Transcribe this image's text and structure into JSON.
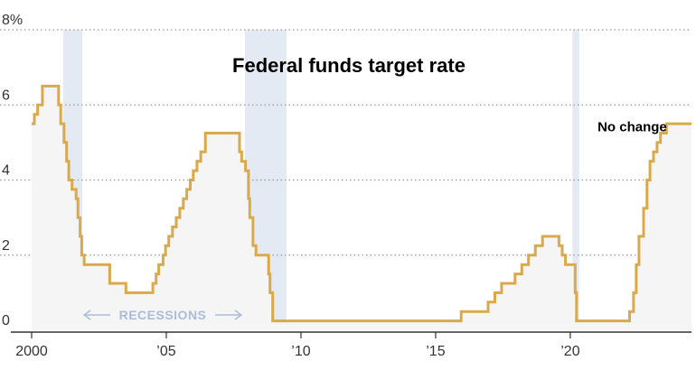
{
  "chart_data": {
    "type": "area",
    "title": "Federal funds target rate",
    "xlabel": "",
    "ylabel": "",
    "xlim": [
      2000,
      2024.5
    ],
    "ylim": [
      0,
      8
    ],
    "y_ticks": [
      {
        "value": 0,
        "label": "0"
      },
      {
        "value": 2,
        "label": "2"
      },
      {
        "value": 4,
        "label": "4"
      },
      {
        "value": 6,
        "label": "6"
      },
      {
        "value": 8,
        "label": "8%"
      }
    ],
    "x_ticks": [
      {
        "value": 2000,
        "label": "2000"
      },
      {
        "value": 2005,
        "label": "’05"
      },
      {
        "value": 2010,
        "label": "’10"
      },
      {
        "value": 2015,
        "label": "’15"
      },
      {
        "value": 2020,
        "label": "’20"
      }
    ],
    "grid": "horizontal dotted",
    "recessions": [
      {
        "start": 2001.17,
        "end": 2001.88
      },
      {
        "start": 2007.92,
        "end": 2009.46
      },
      {
        "start": 2020.08,
        "end": 2020.33
      }
    ],
    "recessions_label": "RECESSIONS",
    "annotation": {
      "text": "No change",
      "x": 2022.3,
      "y": 5.3
    },
    "colors": {
      "line": "#d9a94b",
      "area": "#f5f5f5",
      "recession": "#e3eaf3",
      "recession_text": "#a9bdd9",
      "grid": "#999999"
    },
    "series": [
      {
        "steps": [
          [
            2000.0,
            5.5
          ],
          [
            2000.1,
            5.75
          ],
          [
            2000.22,
            6.0
          ],
          [
            2000.4,
            6.5
          ],
          [
            2001.0,
            6.0
          ],
          [
            2001.08,
            5.5
          ],
          [
            2001.2,
            5.0
          ],
          [
            2001.3,
            4.5
          ],
          [
            2001.38,
            4.0
          ],
          [
            2001.5,
            3.75
          ],
          [
            2001.65,
            3.5
          ],
          [
            2001.72,
            3.0
          ],
          [
            2001.8,
            2.5
          ],
          [
            2001.86,
            2.0
          ],
          [
            2001.95,
            1.75
          ],
          [
            2002.9,
            1.25
          ],
          [
            2003.5,
            1.0
          ],
          [
            2004.5,
            1.25
          ],
          [
            2004.62,
            1.5
          ],
          [
            2004.72,
            1.75
          ],
          [
            2004.88,
            2.0
          ],
          [
            2004.97,
            2.25
          ],
          [
            2005.09,
            2.5
          ],
          [
            2005.23,
            2.75
          ],
          [
            2005.37,
            3.0
          ],
          [
            2005.5,
            3.25
          ],
          [
            2005.63,
            3.5
          ],
          [
            2005.76,
            3.75
          ],
          [
            2005.89,
            4.0
          ],
          [
            2006.0,
            4.25
          ],
          [
            2006.14,
            4.5
          ],
          [
            2006.28,
            4.75
          ],
          [
            2006.45,
            5.25
          ],
          [
            2007.72,
            4.75
          ],
          [
            2007.8,
            4.5
          ],
          [
            2007.94,
            4.25
          ],
          [
            2008.05,
            3.5
          ],
          [
            2008.1,
            3.0
          ],
          [
            2008.22,
            2.25
          ],
          [
            2008.33,
            2.0
          ],
          [
            2008.8,
            1.5
          ],
          [
            2008.85,
            1.0
          ],
          [
            2008.95,
            0.25
          ],
          [
            2015.95,
            0.5
          ],
          [
            2016.95,
            0.75
          ],
          [
            2017.2,
            1.0
          ],
          [
            2017.45,
            1.25
          ],
          [
            2017.95,
            1.5
          ],
          [
            2018.2,
            1.75
          ],
          [
            2018.45,
            2.0
          ],
          [
            2018.7,
            2.25
          ],
          [
            2018.97,
            2.5
          ],
          [
            2019.58,
            2.25
          ],
          [
            2019.7,
            2.0
          ],
          [
            2019.82,
            1.75
          ],
          [
            2020.18,
            1.0
          ],
          [
            2020.23,
            0.25
          ],
          [
            2022.2,
            0.5
          ],
          [
            2022.35,
            1.0
          ],
          [
            2022.45,
            1.75
          ],
          [
            2022.55,
            2.5
          ],
          [
            2022.72,
            3.25
          ],
          [
            2022.85,
            4.0
          ],
          [
            2022.96,
            4.5
          ],
          [
            2023.09,
            4.75
          ],
          [
            2023.22,
            5.0
          ],
          [
            2023.35,
            5.25
          ],
          [
            2023.57,
            5.5
          ],
          [
            2024.5,
            5.5
          ]
        ]
      }
    ]
  }
}
